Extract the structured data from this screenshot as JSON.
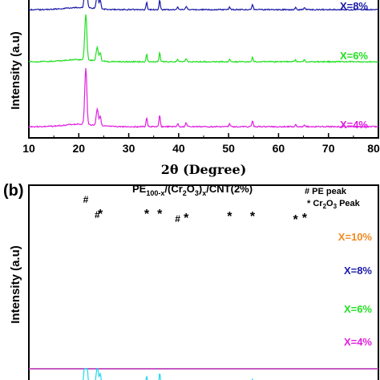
{
  "chart_data": [
    {
      "type": "line",
      "xlabel": "2θ (Degree)",
      "ylabel": "Intensity (a.u)",
      "xlim": [
        10,
        80
      ],
      "xticks": [
        "10",
        "20",
        "30",
        "40",
        "50",
        "60",
        "70",
        "80"
      ],
      "series": [
        {
          "name": "X=8%",
          "color": "#1a1aa8"
        },
        {
          "name": "X=6%",
          "color": "#22e022"
        },
        {
          "name": "X=4%",
          "color": "#e020e0"
        }
      ],
      "peaks_2theta": [
        21.4,
        23.7,
        24.3,
        33.6,
        36.2,
        41.5,
        50.2,
        54.8,
        63.4,
        65.2
      ]
    },
    {
      "type": "line",
      "panel_label": "(b)",
      "title_main": "PE",
      "title_sub1": "100-x",
      "title_mid": "/(Cr",
      "title_sub2": "2",
      "title_o": "O",
      "title_sub3": "3",
      "title_tail": ")",
      "title_sub4": "x",
      "title_end": "/CNT(2%)",
      "legend_line1": "# PE peak",
      "legend_line2_a": "* Cr",
      "legend_line2_sub1": "2",
      "legend_line2_b": "O",
      "legend_line2_sub2": "3",
      "legend_line2_c": " Peak",
      "ylabel": "Intensity (a.u)",
      "xlim": [
        10,
        80
      ],
      "series": [
        {
          "name": "X=10%",
          "color": "#f08a20"
        },
        {
          "name": "X=8%",
          "color": "#1a1aa8"
        },
        {
          "name": "X=6%",
          "color": "#22e022"
        },
        {
          "name": "X=4%",
          "color": "#e020e0"
        },
        {
          "name": "",
          "color": "#20d8f0"
        }
      ],
      "pe_peaks": [
        {
          "x": 21.4,
          "mark": "#"
        },
        {
          "x": 23.7,
          "mark": "#"
        }
      ],
      "cr2o3_peaks": [
        {
          "x": 24.3,
          "mark": "*"
        },
        {
          "x": 33.6,
          "mark": "*"
        },
        {
          "x": 36.2,
          "mark": "*"
        },
        {
          "x": 39.8,
          "mark": "#"
        },
        {
          "x": 41.5,
          "mark": "*"
        },
        {
          "x": 50.2,
          "mark": "*"
        },
        {
          "x": 54.8,
          "mark": "*"
        },
        {
          "x": 63.4,
          "mark": "*"
        },
        {
          "x": 65.2,
          "mark": "*"
        }
      ]
    }
  ]
}
